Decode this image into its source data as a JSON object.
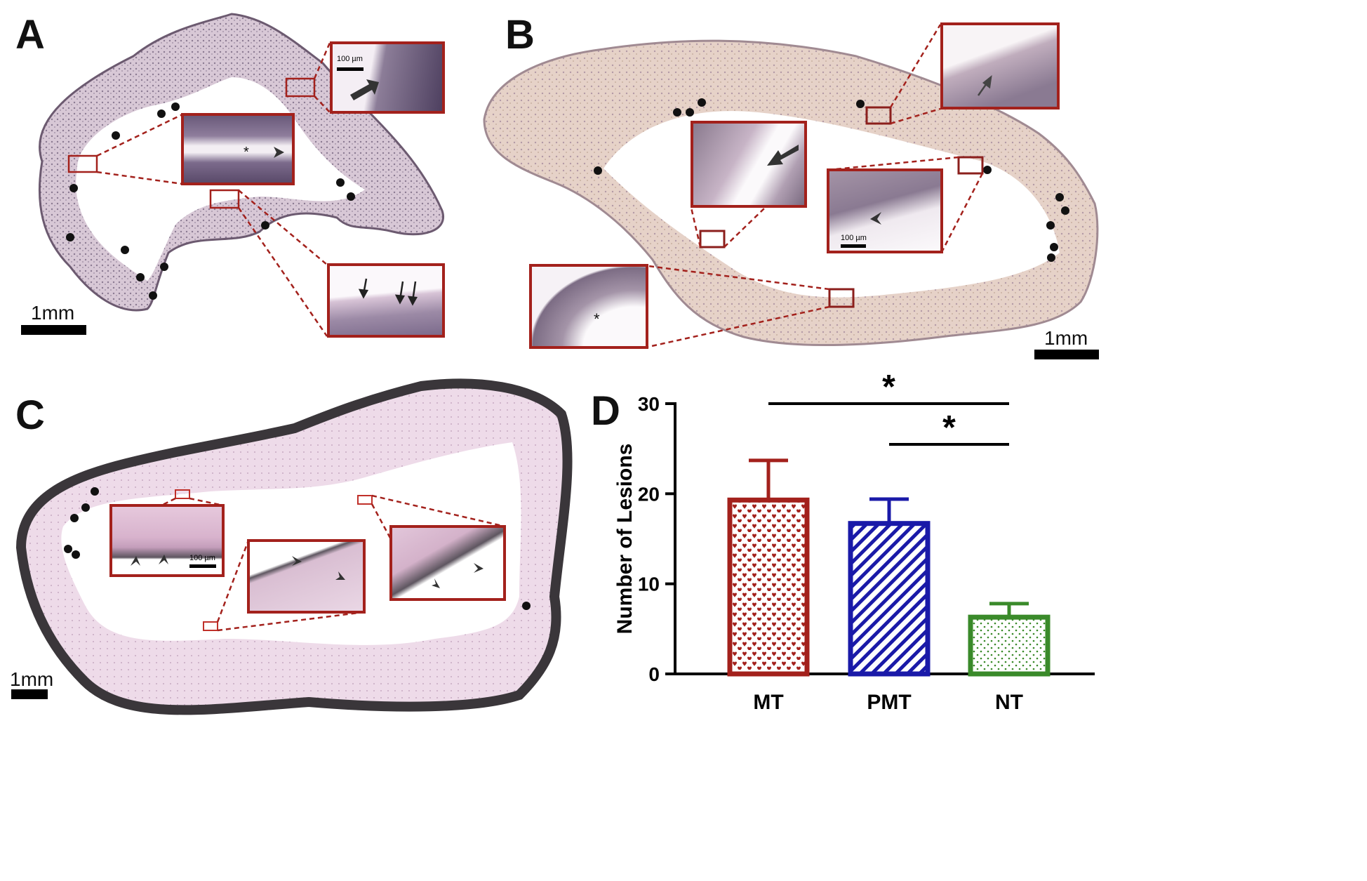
{
  "panels": {
    "a": {
      "letter": "A",
      "scale_label": "1mm",
      "inset_scale": "100 µm"
    },
    "b": {
      "letter": "B",
      "scale_label": "1mm",
      "inset_scale": "100 µm"
    },
    "c": {
      "letter": "C",
      "scale_label": "1mm",
      "inset_scale": "100 µm"
    },
    "d": {
      "letter": "D"
    }
  },
  "colors": {
    "inset_border": "#a3211c",
    "tissue_pink": "#e3c6de",
    "tissue_tan": "#e8d3ae",
    "tissue_dark": "#4a4452",
    "mt": "#a3211c",
    "pmt": "#1a1aa8",
    "nt": "#3a8a2a"
  },
  "chart_data": {
    "type": "bar",
    "categories": [
      "MT",
      "PMT",
      "NT"
    ],
    "values": [
      19.3,
      16.7,
      6.3
    ],
    "errors": [
      4.4,
      2.7,
      1.5
    ],
    "ylabel": "Number of Lesions",
    "ylim": [
      0,
      30
    ],
    "yticks": [
      0,
      10,
      20,
      30
    ],
    "significance": [
      {
        "from": "MT",
        "to": "NT",
        "label": "*"
      },
      {
        "from": "PMT",
        "to": "NT",
        "label": "*"
      }
    ],
    "patterns": [
      "hearts",
      "diagonal-stripes",
      "dots"
    ],
    "grid": false
  }
}
